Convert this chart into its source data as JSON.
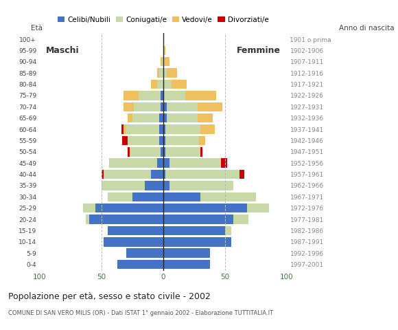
{
  "age_groups": [
    "0-4",
    "5-9",
    "10-14",
    "15-19",
    "20-24",
    "25-29",
    "30-34",
    "35-39",
    "40-44",
    "45-49",
    "50-54",
    "55-59",
    "60-64",
    "65-69",
    "70-74",
    "75-79",
    "80-84",
    "85-89",
    "90-94",
    "95-99",
    "100+"
  ],
  "birth_years": [
    "1997-2001",
    "1992-1996",
    "1987-1991",
    "1982-1986",
    "1977-1981",
    "1972-1976",
    "1967-1971",
    "1962-1966",
    "1957-1961",
    "1952-1956",
    "1947-1951",
    "1942-1946",
    "1937-1941",
    "1932-1936",
    "1927-1931",
    "1922-1926",
    "1917-1921",
    "1912-1916",
    "1907-1911",
    "1902-1906",
    "1901 o prima"
  ],
  "males": {
    "celibe": [
      37,
      30,
      48,
      45,
      60,
      55,
      25,
      15,
      10,
      5,
      2,
      3,
      3,
      3,
      2,
      2,
      0,
      0,
      0,
      0,
      0
    ],
    "coniugato": [
      0,
      0,
      0,
      0,
      3,
      10,
      20,
      35,
      38,
      38,
      25,
      26,
      27,
      22,
      22,
      18,
      5,
      3,
      1,
      0,
      0
    ],
    "vedovo": [
      0,
      0,
      0,
      0,
      0,
      0,
      0,
      0,
      0,
      1,
      0,
      0,
      2,
      4,
      8,
      12,
      5,
      2,
      1,
      0,
      0
    ],
    "divorziato": [
      0,
      0,
      0,
      0,
      0,
      0,
      0,
      0,
      2,
      0,
      2,
      4,
      2,
      0,
      0,
      0,
      0,
      0,
      0,
      0,
      0
    ]
  },
  "females": {
    "nubile": [
      38,
      38,
      55,
      50,
      57,
      68,
      30,
      5,
      2,
      5,
      2,
      2,
      2,
      3,
      3,
      0,
      0,
      0,
      0,
      0,
      0
    ],
    "coniugata": [
      0,
      0,
      0,
      5,
      12,
      18,
      45,
      52,
      60,
      42,
      28,
      27,
      28,
      25,
      25,
      18,
      7,
      3,
      1,
      1,
      0
    ],
    "vedova": [
      0,
      0,
      0,
      0,
      0,
      0,
      0,
      0,
      0,
      0,
      0,
      5,
      12,
      12,
      20,
      25,
      12,
      8,
      4,
      1,
      0
    ],
    "divorziata": [
      0,
      0,
      0,
      0,
      0,
      0,
      0,
      0,
      4,
      5,
      2,
      0,
      0,
      0,
      0,
      0,
      0,
      0,
      0,
      0,
      0
    ]
  },
  "colors": {
    "celibe": "#4472c4",
    "coniugato": "#c8d9a8",
    "vedovo": "#f0c060",
    "divorziato": "#cc0000"
  },
  "legend_labels": [
    "Celibi/Nubili",
    "Coniugati/e",
    "Vedovi/e",
    "Divorziati/e"
  ],
  "title": "Popolazione per età, sesso e stato civile - 2002",
  "subtitle": "COMUNE DI SAN VERO MILIS (OR) - Dati ISTAT 1° gennaio 2002 - Elaborazione TUTTITALIA.IT",
  "label_eta": "Età",
  "label_anno": "Anno di nascita",
  "label_maschi": "Maschi",
  "label_femmine": "Femmine",
  "xlim": 100,
  "background_color": "#ffffff",
  "grid_color": "#cccccc"
}
